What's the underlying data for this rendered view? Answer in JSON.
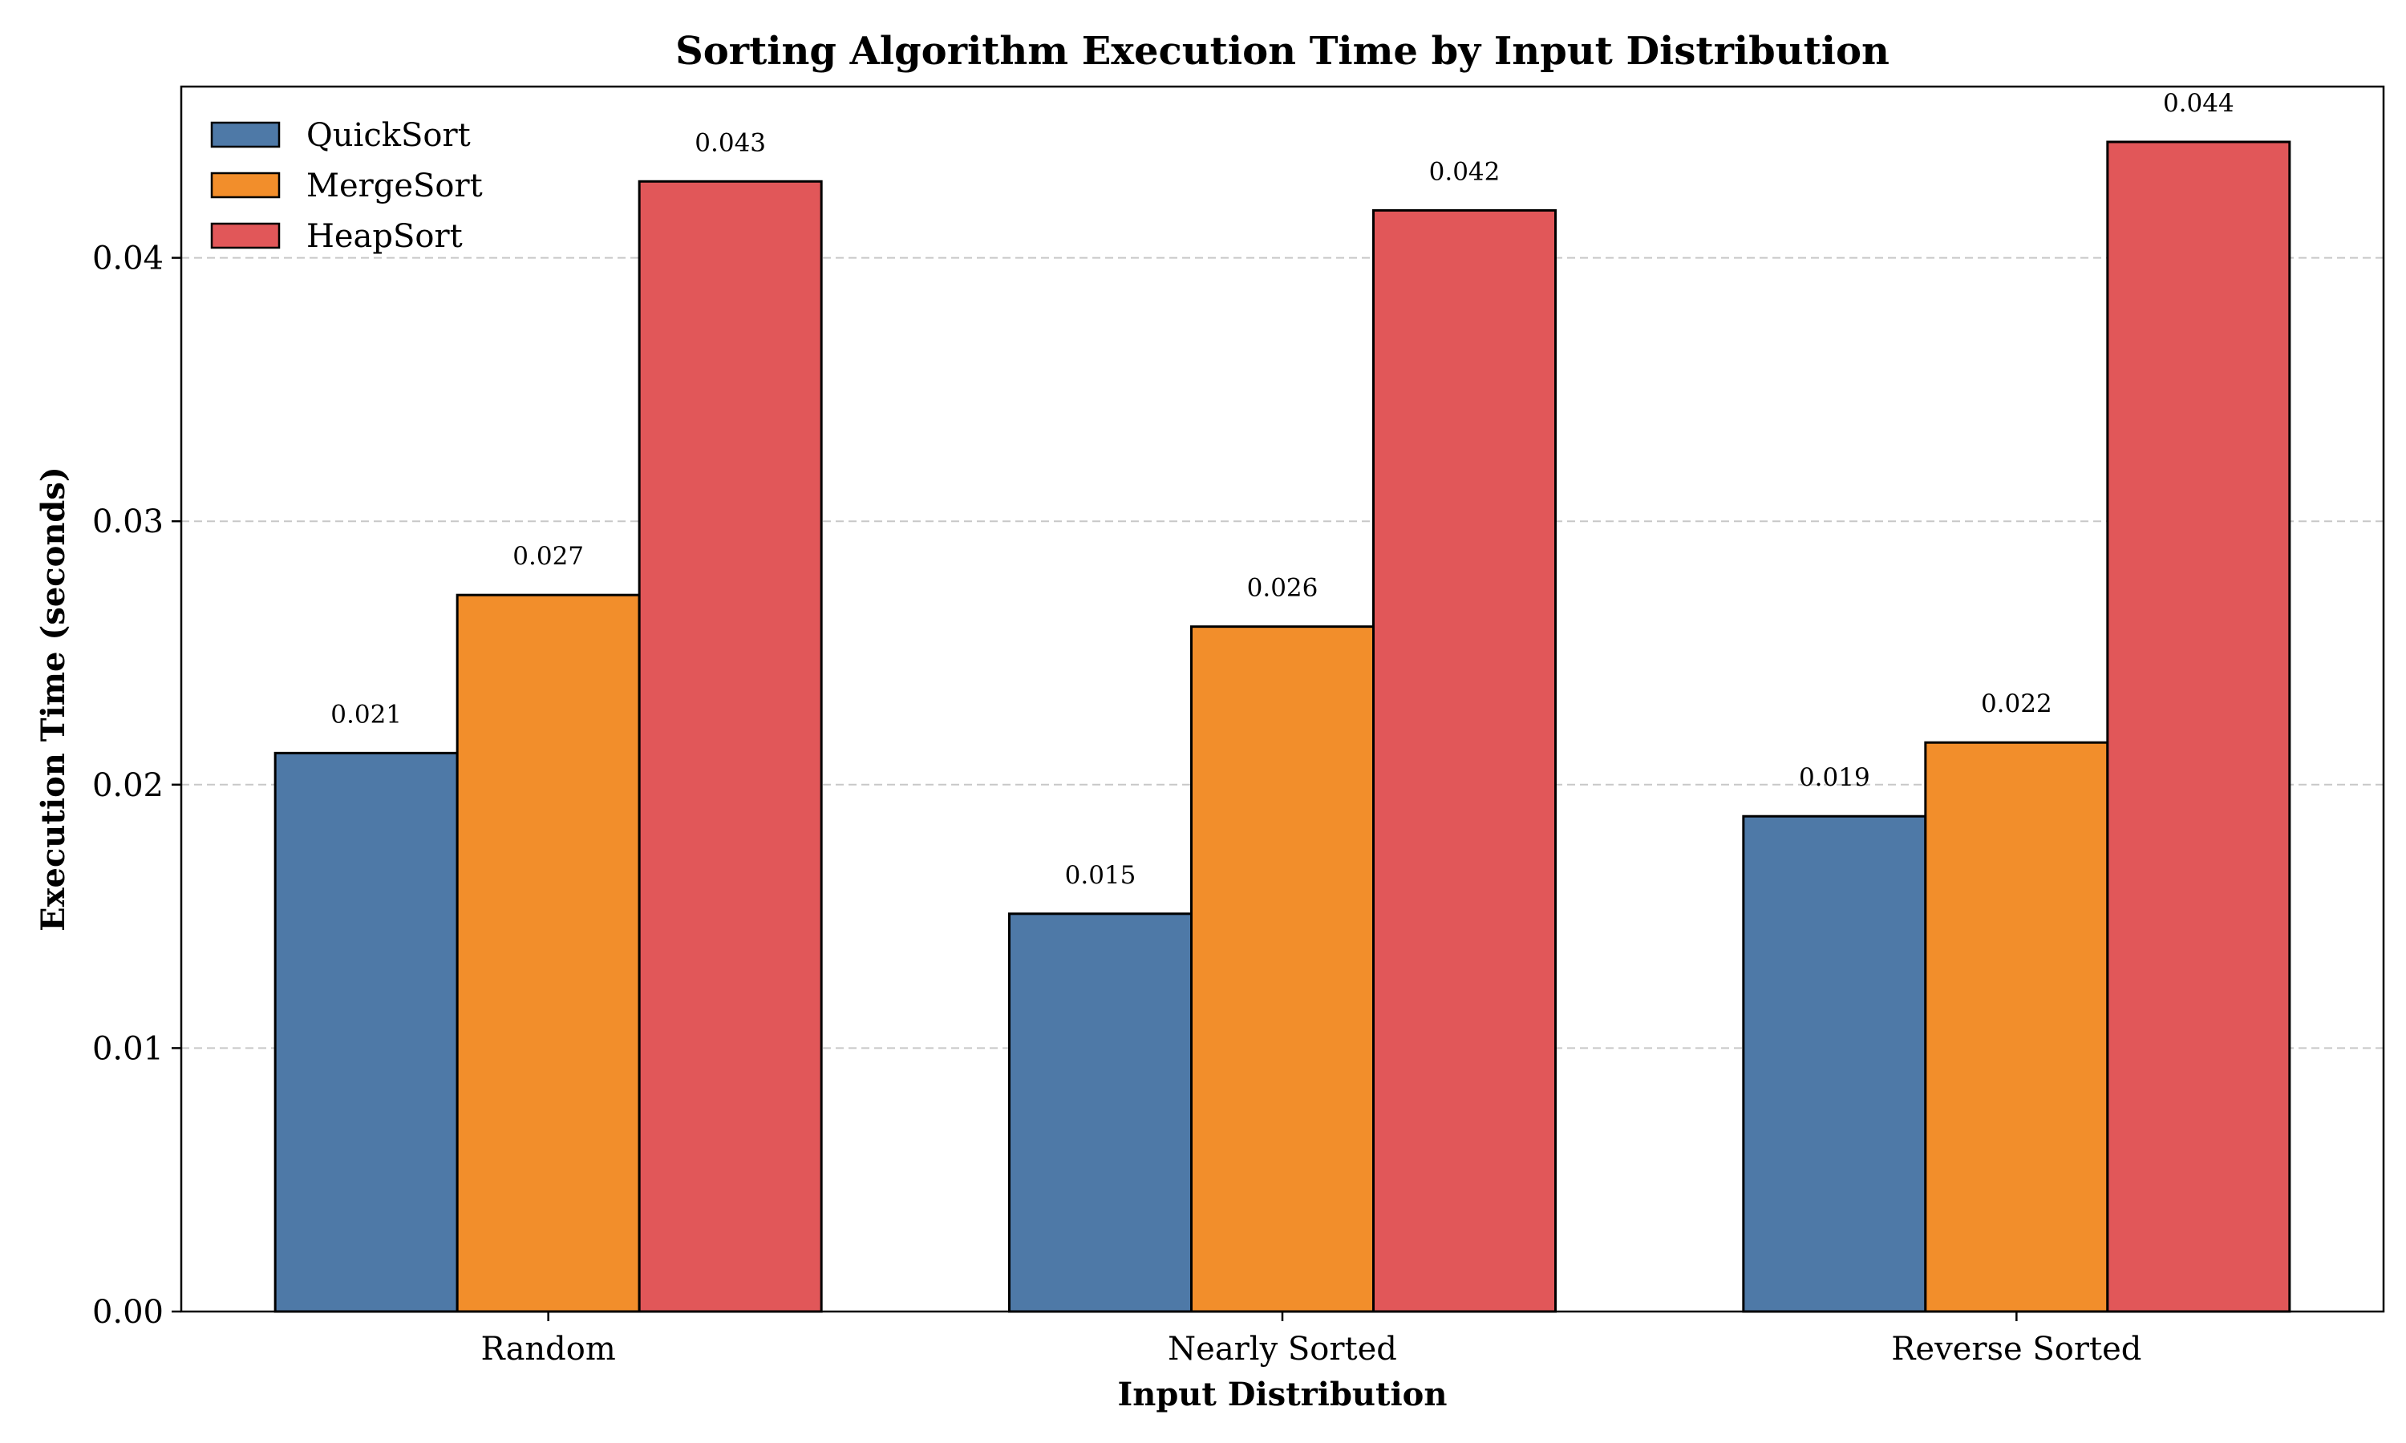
{
  "chart_data": {
    "type": "bar",
    "title": "Sorting Algorithm Execution Time by Input Distribution",
    "xlabel": "Input Distribution",
    "ylabel": "Execution Time (seconds)",
    "categories": [
      "Random",
      "Nearly Sorted",
      "Reverse Sorted"
    ],
    "series": [
      {
        "name": "QuickSort",
        "color": "#4e79a7",
        "values": [
          0.0212,
          0.0151,
          0.0188
        ],
        "labels": [
          "0.021",
          "0.015",
          "0.019"
        ]
      },
      {
        "name": "MergeSort",
        "color": "#f28e2b",
        "values": [
          0.0272,
          0.026,
          0.0216
        ],
        "labels": [
          "0.027",
          "0.026",
          "0.022"
        ]
      },
      {
        "name": "HeapSort",
        "color": "#e15759",
        "values": [
          0.0429,
          0.0418,
          0.0444
        ],
        "labels": [
          "0.043",
          "0.042",
          "0.044"
        ]
      }
    ],
    "ylim": [
      0,
      0.0465
    ],
    "yticks": [
      0.0,
      0.01,
      0.02,
      0.03,
      0.04
    ],
    "ytick_labels": [
      "0.00",
      "0.01",
      "0.02",
      "0.03",
      "0.04"
    ],
    "grid": "y-dashed",
    "legend_position": "top-left"
  }
}
